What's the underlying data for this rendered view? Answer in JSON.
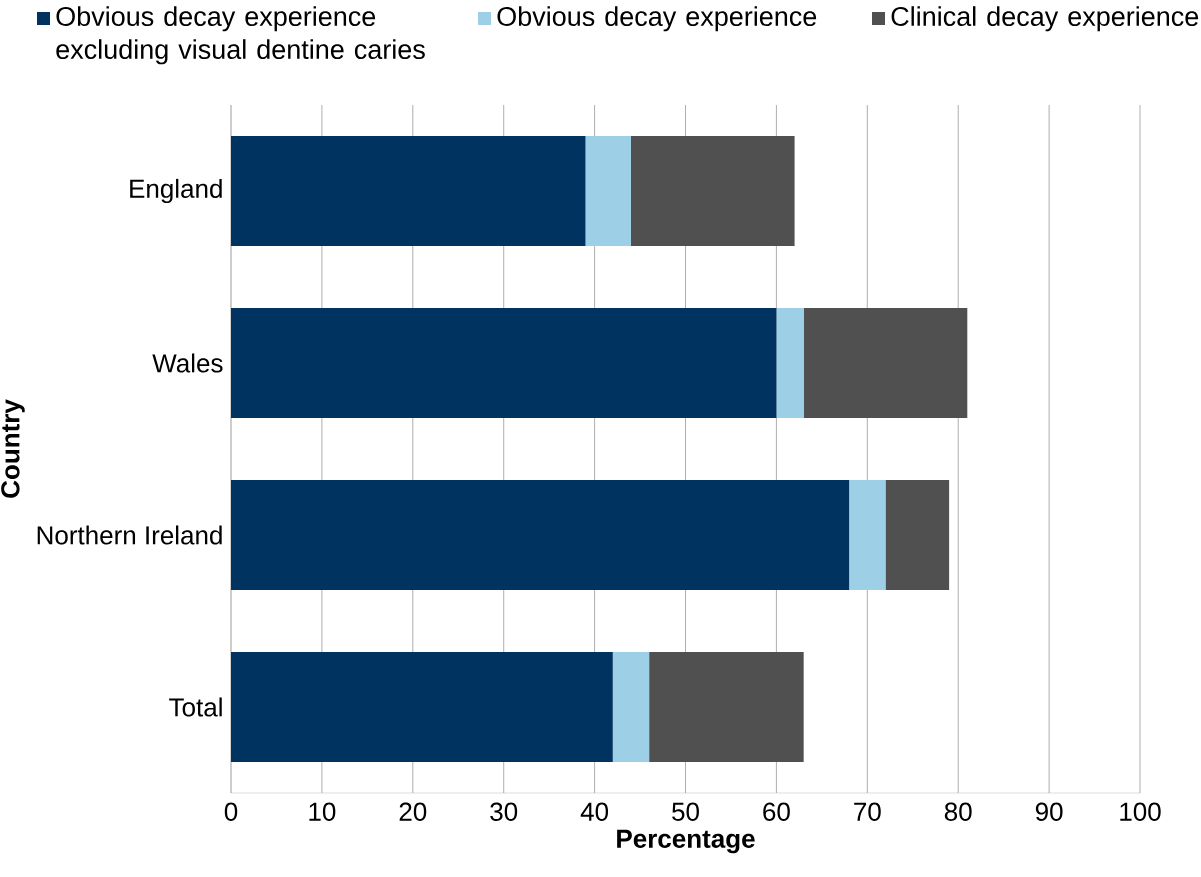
{
  "chart_data": {
    "type": "bar",
    "orientation": "horizontal",
    "stacked": true,
    "xlabel": "Percentage",
    "ylabel": "Country",
    "categories": [
      "England",
      "Wales",
      "Northern Ireland",
      "Total"
    ],
    "series": [
      {
        "name": "Obvious decay experience excluding visual dentine caries",
        "color": "#003360",
        "values": [
          39,
          60,
          68,
          42
        ]
      },
      {
        "name": "Obvious decay experience",
        "color": "#9dcfe6",
        "values": [
          5,
          3,
          4,
          4
        ]
      },
      {
        "name": "Clinical decay experience",
        "color": "#505050",
        "values": [
          18,
          18,
          7,
          17
        ]
      }
    ],
    "xlim": [
      0,
      100
    ],
    "xticks": [
      0,
      10,
      20,
      30,
      40,
      50,
      60,
      70,
      80,
      90,
      100
    ],
    "grid": "x",
    "legend": "top"
  }
}
